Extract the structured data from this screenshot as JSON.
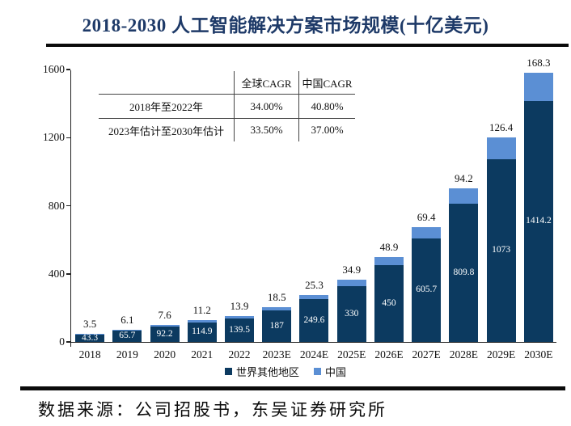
{
  "title": "2018-2030 人工智能解决方案市场规模(十亿美元)",
  "source": "数据来源：公司招股书，东吴证券研究所",
  "cagr_table": {
    "headers": [
      "",
      "全球CAGR",
      "中国CAGR"
    ],
    "rows": [
      [
        "2018年至2022年",
        "34.00%",
        "40.80%"
      ],
      [
        "2023年估计至2030年估计",
        "33.50%",
        "37.00%"
      ]
    ]
  },
  "chart_data": {
    "type": "bar",
    "stacked": true,
    "title": "2018-2030 人工智能解决方案市场规模(十亿美元)",
    "unit": "十亿美元",
    "categories": [
      "2018",
      "2019",
      "2020",
      "2021",
      "2022",
      "2023E",
      "2024E",
      "2025E",
      "2026E",
      "2027E",
      "2028E",
      "2029E",
      "2030E"
    ],
    "series": [
      {
        "name": "世界其他地区",
        "color": "#0c3a60",
        "label_color": "#ffffff",
        "label_position": "inside-center",
        "values": [
          43.3,
          65.7,
          92.2,
          114.9,
          139.5,
          187,
          249.6,
          330,
          450,
          605.7,
          809.8,
          1073,
          1414.2
        ],
        "labels": [
          "43.3",
          "65.7",
          "92.2",
          "114.9",
          "139.5",
          "187",
          "249.6",
          "330",
          "450",
          "605.7",
          "809.8",
          "1073",
          "1414.2"
        ]
      },
      {
        "name": "中国",
        "color": "#5b8fd4",
        "label_color": "#111111",
        "label_position": "above-bar",
        "values": [
          3.5,
          6.1,
          7.6,
          11.2,
          13.9,
          18.5,
          25.3,
          34.9,
          48.9,
          69.4,
          94.2,
          126.4,
          168.3
        ],
        "labels": [
          "3.5",
          "6.1",
          "7.6",
          "11.2",
          "13.9",
          "18.5",
          "25.3",
          "34.9",
          "48.9",
          "69.4",
          "94.2",
          "126.4",
          "168.3"
        ]
      }
    ],
    "ylim": [
      0,
      1600
    ],
    "y_ticks": [
      0,
      400,
      800,
      1200,
      1600
    ],
    "grid": false,
    "legend_position": "bottom"
  },
  "colors": {
    "title": "#1e3a68",
    "axis": "#222222",
    "rule": "#0b0b0b"
  }
}
